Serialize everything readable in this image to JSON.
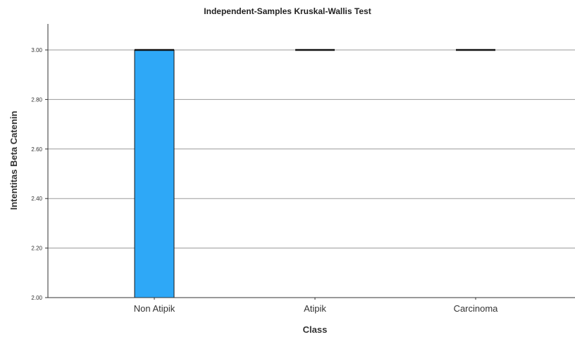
{
  "chart_data": {
    "type": "box",
    "title": "Independent-Samples Kruskal-Wallis Test",
    "xlabel": "Class",
    "ylabel": "Intentitas Beta Catenin",
    "categories": [
      "Non Atipik",
      "Atipik",
      "Carcinoma"
    ],
    "boxes": [
      {
        "category": "Non Atipik",
        "q1": 2.0,
        "median": 3.0,
        "q3": 3.0
      },
      {
        "category": "Atipik",
        "q1": 3.0,
        "median": 3.0,
        "q3": 3.0
      },
      {
        "category": "Carcinoma",
        "q1": 3.0,
        "median": 3.0,
        "q3": 3.0
      }
    ],
    "ylim": [
      2.0,
      3.1
    ],
    "yticks": [
      "2.00",
      "2.20",
      "2.40",
      "2.60",
      "2.80",
      "3.00"
    ],
    "grid": true,
    "box_color": "#2ea8f7"
  }
}
